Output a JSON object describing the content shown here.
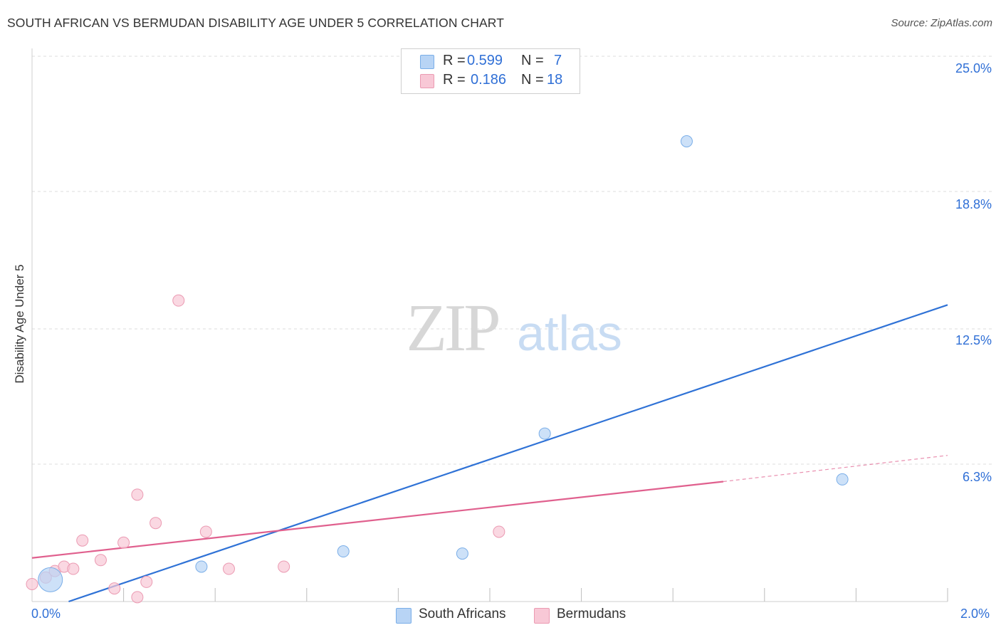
{
  "title": "SOUTH AFRICAN VS BERMUDAN DISABILITY AGE UNDER 5 CORRELATION CHART",
  "source": "Source: ZipAtlas.com",
  "watermark": {
    "zip": "ZIP",
    "atlas": "atlas"
  },
  "chart_data": {
    "type": "scatter",
    "title": "SOUTH AFRICAN VS BERMUDAN DISABILITY AGE UNDER 5 CORRELATION CHART",
    "xlabel": "",
    "ylabel": "Disability Age Under 5",
    "xlim": [
      0.0,
      2.0
    ],
    "ylim": [
      0.0,
      25.0
    ],
    "x_tick_labels": [
      "0.0%",
      "2.0%"
    ],
    "y_ticks": [
      6.3,
      12.5,
      18.8,
      25.0
    ],
    "y_tick_labels": [
      "6.3%",
      "12.5%",
      "18.8%",
      "25.0%"
    ],
    "grid": true,
    "legend_position": "top-center",
    "series": [
      {
        "name": "South Africans",
        "color": "#7aaee8",
        "fill": "#b8d4f5",
        "line_color": "#2f72d6",
        "R": "0.599",
        "N": "7",
        "points": [
          {
            "x": 0.04,
            "y": 1.0,
            "size": "large"
          },
          {
            "x": 0.37,
            "y": 1.6
          },
          {
            "x": 0.68,
            "y": 2.3
          },
          {
            "x": 0.94,
            "y": 2.2
          },
          {
            "x": 1.12,
            "y": 7.7
          },
          {
            "x": 1.43,
            "y": 21.1
          },
          {
            "x": 1.77,
            "y": 5.6
          }
        ],
        "trend": {
          "x0": 0.08,
          "y0": 0.0,
          "x1": 2.0,
          "y1": 13.6
        }
      },
      {
        "name": "Bermudans",
        "color": "#eb9ab2",
        "fill": "#f8c8d6",
        "line_color": "#e0608e",
        "R": "0.186",
        "N": "18",
        "points": [
          {
            "x": 0.0,
            "y": 0.8
          },
          {
            "x": 0.03,
            "y": 1.1
          },
          {
            "x": 0.05,
            "y": 1.4
          },
          {
            "x": 0.07,
            "y": 1.6
          },
          {
            "x": 0.09,
            "y": 1.5
          },
          {
            "x": 0.11,
            "y": 2.8
          },
          {
            "x": 0.15,
            "y": 1.9
          },
          {
            "x": 0.18,
            "y": 0.6
          },
          {
            "x": 0.2,
            "y": 2.7
          },
          {
            "x": 0.23,
            "y": 0.2
          },
          {
            "x": 0.25,
            "y": 0.9
          },
          {
            "x": 0.27,
            "y": 3.6
          },
          {
            "x": 0.32,
            "y": 13.8
          },
          {
            "x": 0.38,
            "y": 3.2
          },
          {
            "x": 0.43,
            "y": 1.5
          },
          {
            "x": 0.55,
            "y": 1.6
          },
          {
            "x": 0.23,
            "y": 4.9
          },
          {
            "x": 1.02,
            "y": 3.2
          }
        ],
        "trend_solid": {
          "x0": 0.0,
          "y0": 2.0,
          "x1": 1.51,
          "y1": 5.5
        },
        "trend_dashed": {
          "x0": 1.51,
          "y0": 5.5,
          "x1": 2.0,
          "y1": 6.7
        }
      }
    ]
  },
  "legend": {
    "r_label": "R =",
    "n_label": "N =",
    "rows": [
      {
        "r": "0.599",
        "n": "7"
      },
      {
        "r": "0.186",
        "n": "18"
      }
    ]
  },
  "bottom_legend": [
    "South Africans",
    "Bermudans"
  ]
}
